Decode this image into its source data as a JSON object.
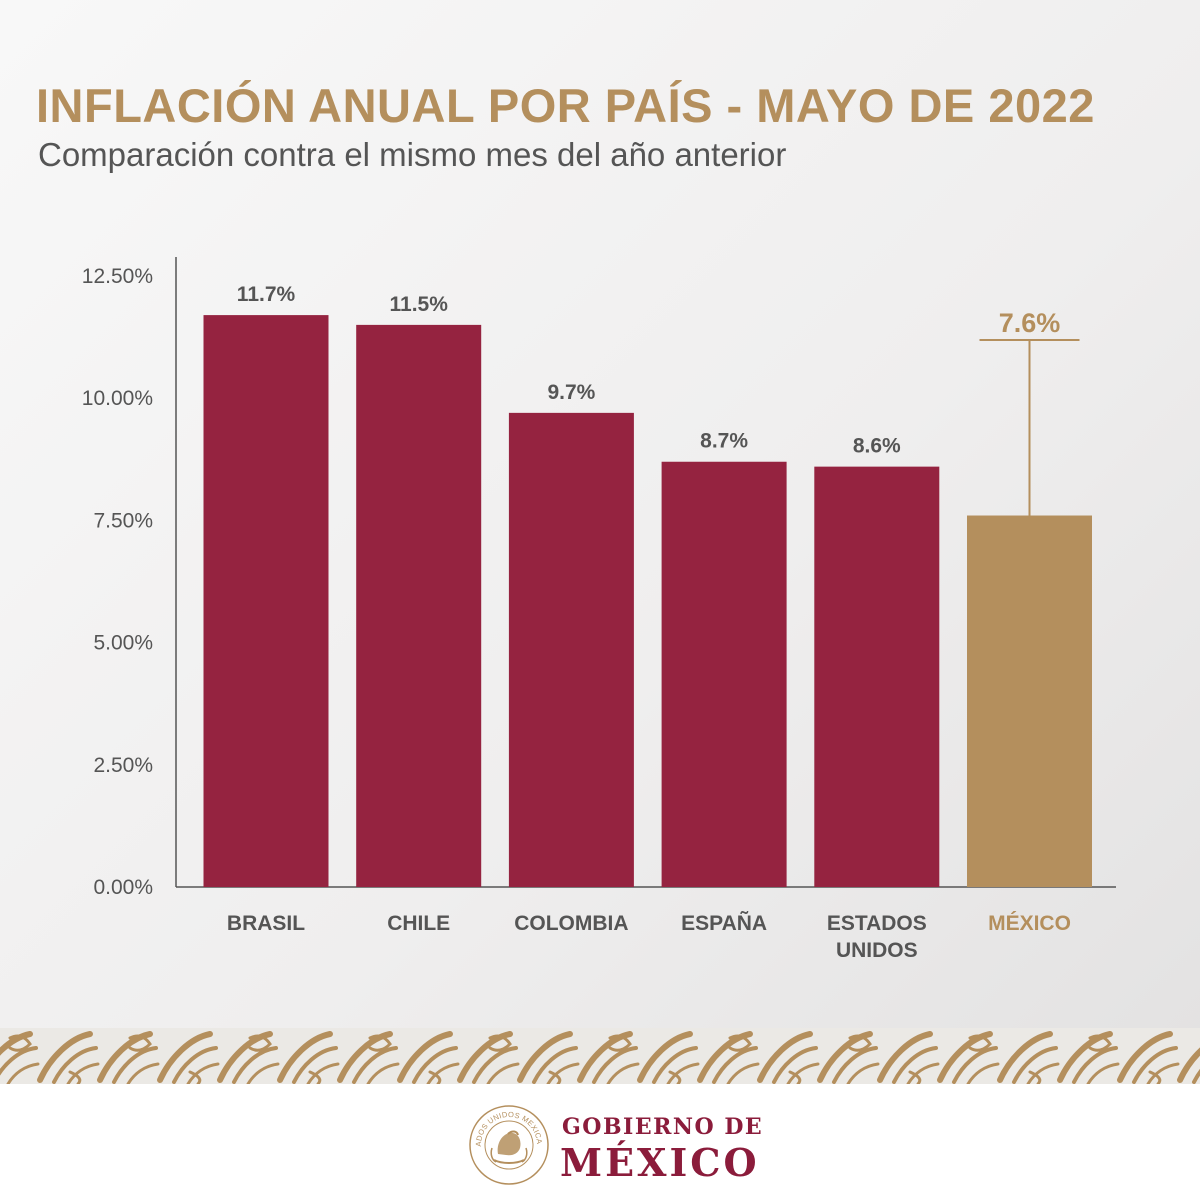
{
  "header": {
    "title": "INFLACIÓN ANUAL POR PAÍS - MAYO DE 2022",
    "subtitle": "Comparación contra el mismo mes del año anterior"
  },
  "chart_data": {
    "type": "bar",
    "categories": [
      [
        "BRASIL"
      ],
      [
        "CHILE"
      ],
      [
        "COLOMBIA"
      ],
      [
        "ESPAÑA"
      ],
      [
        "ESTADOS",
        "UNIDOS"
      ],
      [
        "MÉXICO"
      ]
    ],
    "values": [
      11.7,
      11.5,
      9.7,
      8.7,
      8.6,
      7.6
    ],
    "value_labels": [
      "11.7%",
      "11.5%",
      "9.7%",
      "8.7%",
      "8.6%",
      "7.6%"
    ],
    "highlight_index": 5,
    "y_ticks": [
      0,
      2.5,
      5,
      7.5,
      10,
      12.5
    ],
    "y_tick_labels": [
      "0.00%",
      "2.50%",
      "5.00%",
      "7.50%",
      "10.00%",
      "12.50%"
    ],
    "ylim": [
      0,
      12.5
    ],
    "colors": {
      "bar": "#952340",
      "highlight": "#b48f5d",
      "axis": "#555555",
      "text": "#555555"
    }
  },
  "footer": {
    "line1": "GOBIERNO DE",
    "line2": "MÉXICO",
    "seal_text": "ESTADOS UNIDOS MEXICANOS"
  },
  "colors": {
    "gold": "#b48f5d",
    "wine": "#8b1c3b",
    "gray_text": "#555555"
  }
}
